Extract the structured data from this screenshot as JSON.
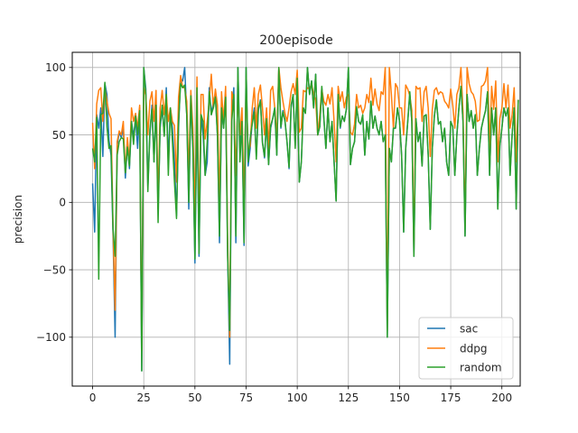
{
  "chart_data": {
    "type": "line",
    "title": "200episode",
    "xlabel": "",
    "ylabel": "precision",
    "xlim": [
      -9.95,
      208.95
    ],
    "ylim": [
      -136.25,
      111.25
    ],
    "xticks": [
      0,
      25,
      50,
      75,
      100,
      125,
      150,
      175,
      200
    ],
    "yticks": [
      -100,
      -50,
      0,
      50,
      100
    ],
    "xtick_labels": [
      "0",
      "25",
      "50",
      "75",
      "100",
      "125",
      "150",
      "175",
      "200"
    ],
    "ytick_labels": [
      "−100",
      "−50",
      "0",
      "50",
      "100"
    ],
    "grid": true,
    "legend_position": "lower right",
    "series": [
      {
        "name": "sac",
        "color": "#1f77b4",
        "values": [
          14,
          -22,
          65,
          55,
          70,
          34,
          88,
          80,
          46,
          35,
          -25,
          -100,
          42,
          52,
          48,
          55,
          18,
          43,
          25,
          60,
          49,
          62,
          40,
          70,
          -125,
          100,
          84,
          12,
          50,
          72,
          30,
          76,
          -5,
          55,
          70,
          50,
          85,
          30,
          70,
          55,
          30,
          -10,
          55,
          92,
          90,
          100,
          65,
          -5,
          76,
          40,
          -45,
          70,
          -40,
          65,
          50,
          20,
          30,
          85,
          65,
          75,
          80,
          50,
          -30,
          68,
          55,
          80,
          -40,
          -120,
          65,
          85,
          -30,
          100,
          40,
          60,
          -32,
          100,
          27,
          40,
          60,
          70,
          34,
          68,
          76,
          45,
          33,
          60,
          28,
          55,
          62,
          70,
          35,
          100,
          55,
          68,
          60,
          45,
          25,
          70,
          80,
          42,
          90,
          15,
          30,
          70,
          66,
          100,
          80,
          90,
          70,
          95,
          50,
          56,
          85,
          62,
          40,
          70,
          45,
          60,
          30,
          1,
          80,
          55,
          64,
          60,
          69,
          100,
          28,
          40,
          45,
          70,
          60,
          58,
          64,
          35,
          60,
          47,
          75,
          55,
          64,
          55,
          50,
          60,
          45,
          50,
          -100,
          40,
          30,
          55,
          55,
          70,
          60,
          35,
          -22,
          40,
          60,
          80,
          60,
          -40,
          62,
          45,
          52,
          27,
          64,
          65,
          35,
          -20,
          40,
          64,
          76,
          58,
          60,
          45,
          55,
          30,
          20,
          60,
          56,
          20,
          50,
          70,
          86,
          60,
          -25,
          80,
          60,
          68,
          55,
          65,
          20,
          40,
          55,
          62,
          68,
          82,
          20,
          70,
          50,
          70,
          -5,
          42,
          55,
          70,
          64,
          70,
          20,
          50,
          70,
          -5,
          76
        ]
      },
      {
        "name": "ddpg",
        "color": "#ff7f0e",
        "values": [
          59,
          25,
          73,
          83,
          85,
          60,
          85,
          75,
          66,
          62,
          -20,
          -80,
          45,
          53,
          50,
          60,
          22,
          48,
          30,
          70,
          60,
          66,
          55,
          72,
          -110,
          85,
          79,
          50,
          75,
          82,
          60,
          83,
          0,
          70,
          83,
          65,
          80,
          60,
          70,
          60,
          57,
          15,
          78,
          94,
          85,
          85,
          75,
          20,
          83,
          55,
          -10,
          93,
          -18,
          80,
          80,
          47,
          60,
          75,
          95,
          70,
          84,
          72,
          0,
          82,
          60,
          86,
          -30,
          -100,
          82,
          75,
          20,
          80,
          50,
          70,
          0,
          88,
          37,
          42,
          70,
          85,
          55,
          80,
          87,
          70,
          50,
          70,
          40,
          83,
          86,
          70,
          48,
          100,
          85,
          75,
          66,
          60,
          70,
          82,
          88,
          80,
          98,
          52,
          55,
          83,
          82,
          85,
          84,
          88,
          80,
          76,
          50,
          65,
          84,
          75,
          72,
          80,
          73,
          85,
          60,
          30,
          86,
          75,
          82,
          70,
          78,
          80,
          52,
          50,
          58,
          80,
          70,
          72,
          66,
          70,
          80,
          74,
          92,
          72,
          84,
          73,
          68,
          82,
          80,
          100,
          -95,
          100,
          80,
          55,
          88,
          85,
          70,
          70,
          50,
          87,
          84,
          79,
          68,
          -35,
          86,
          84,
          85,
          60,
          82,
          86,
          70,
          34,
          69,
          83,
          85,
          80,
          82,
          81,
          75,
          73,
          70,
          84,
          72,
          55,
          80,
          85,
          100,
          67,
          -18,
          100,
          88,
          82,
          80,
          75,
          60,
          61,
          86,
          87,
          90,
          100,
          40,
          86,
          69,
          90,
          30,
          62,
          70,
          88,
          70,
          87,
          55,
          65,
          85,
          30,
          76
        ]
      },
      {
        "name": "random",
        "color": "#2ca02c",
        "values": [
          40,
          30,
          63,
          -57,
          65,
          66,
          89,
          56,
          40,
          42,
          -20,
          -40,
          35,
          45,
          48,
          47,
          22,
          41,
          27,
          60,
          43,
          64,
          50,
          68,
          -125,
          100,
          80,
          8,
          54,
          69,
          30,
          72,
          -15,
          58,
          72,
          49,
          80,
          20,
          70,
          45,
          15,
          -12,
          60,
          88,
          85,
          87,
          65,
          0,
          79,
          40,
          -42,
          85,
          -38,
          65,
          60,
          20,
          45,
          82,
          65,
          70,
          78,
          50,
          -25,
          70,
          55,
          78,
          -40,
          -95,
          60,
          80,
          -25,
          100,
          30,
          60,
          -30,
          100,
          30,
          48,
          58,
          67,
          32,
          70,
          75,
          44,
          34,
          62,
          28,
          57,
          62,
          70,
          35,
          100,
          56,
          67,
          61,
          45,
          26,
          72,
          80,
          40,
          92,
          15,
          30,
          70,
          66,
          100,
          80,
          90,
          70,
          95,
          50,
          56,
          86,
          63,
          40,
          70,
          45,
          60,
          30,
          1,
          80,
          56,
          64,
          60,
          69,
          100,
          28,
          40,
          45,
          71,
          60,
          58,
          65,
          35,
          60,
          47,
          75,
          55,
          64,
          55,
          50,
          60,
          45,
          50,
          -100,
          40,
          30,
          55,
          55,
          70,
          60,
          35,
          -22,
          40,
          60,
          82,
          60,
          -40,
          62,
          45,
          52,
          27,
          64,
          65,
          35,
          -20,
          40,
          64,
          76,
          58,
          60,
          45,
          55,
          30,
          20,
          60,
          56,
          20,
          50,
          70,
          86,
          60,
          -25,
          80,
          60,
          68,
          55,
          65,
          20,
          40,
          55,
          62,
          68,
          82,
          20,
          70,
          50,
          70,
          -5,
          42,
          55,
          70,
          64,
          70,
          20,
          50,
          70,
          -5,
          76
        ]
      }
    ]
  }
}
